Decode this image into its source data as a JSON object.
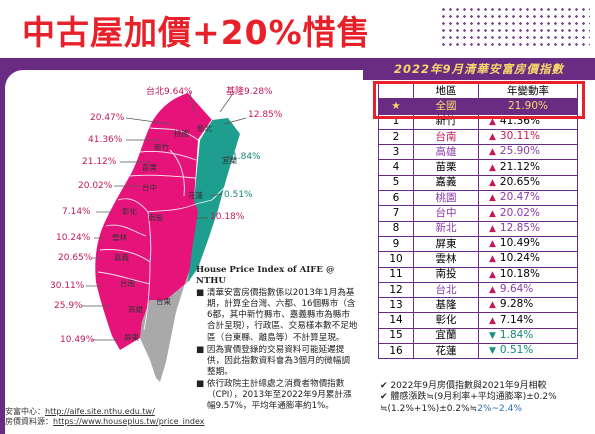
{
  "headline": "中古屋加價+20%惜售",
  "banner": "2022年9月清華安富房價指數",
  "map": {
    "labels": [
      {
        "k": "taipei",
        "text": "台北9.64%"
      },
      {
        "k": "keelung",
        "text": "基隆9.28%"
      },
      {
        "k": "p2047",
        "text": "20.47%"
      },
      {
        "k": "p1285",
        "text": "12.85%"
      },
      {
        "k": "p4136",
        "text": "41.36%"
      },
      {
        "k": "p2112",
        "text": "21.12%"
      },
      {
        "k": "p184",
        "text": "1.84%"
      },
      {
        "k": "p2002",
        "text": "20.02%"
      },
      {
        "k": "p051",
        "text": "0.51%"
      },
      {
        "k": "p714",
        "text": "7.14%"
      },
      {
        "k": "p1018",
        "text": "10.18%"
      },
      {
        "k": "p1024",
        "text": "10.24%"
      },
      {
        "k": "p2065",
        "text": "20.65%"
      },
      {
        "k": "p3011",
        "text": "30.11%"
      },
      {
        "k": "p259",
        "text": "25.9%"
      },
      {
        "k": "p1049",
        "text": "10.49%"
      }
    ],
    "regions": [
      "新北",
      "桃園",
      "新竹",
      "苗栗",
      "宜蘭",
      "台中",
      "花蓮",
      "彰化",
      "南投",
      "雲林",
      "嘉義",
      "台南",
      "高雄",
      "屏東",
      "台東"
    ]
  },
  "info": {
    "title": "House Price Index of AIFE @ NTHU",
    "bullets": [
      "清華安富房價指數係以2013年1月為基期，計算全台灣、六都、16個縣市（含6都，其中新竹縣市、嘉義縣市為縣市合計呈現），行政區、交易樣本數不足地區（台東縣、離島等）不計算呈現。",
      "因為實價登錄的交易資料可能延遲提供，因此指數資料會為3個月的微幅調整期。",
      "依行政院主計總處之消費者物價指數（CPI），2013年至2022年9月累計漲幅9.57%，平均年通膨率約1%。"
    ]
  },
  "credit": {
    "line1_label": "安富中心：",
    "line1_url": "http://aife.site.nthu.edu.tw/",
    "line2_label": "房價資料源：",
    "line2_url": "https://www.houseplus.tw/price_index"
  },
  "table": {
    "headers": [
      "地區",
      "年變動率"
    ],
    "highlight": {
      "num": "★",
      "region": "全國",
      "pct": "21.90%"
    },
    "rows": [
      {
        "num": "1",
        "region": "新竹",
        "pct": "41.36%",
        "dir": "up",
        "color": "dark"
      },
      {
        "num": "2",
        "region": "台南",
        "pct": "30.11%",
        "dir": "up",
        "color": "red"
      },
      {
        "num": "3",
        "region": "高雄",
        "pct": "25.90%",
        "dir": "up",
        "color": "purp"
      },
      {
        "num": "4",
        "region": "苗栗",
        "pct": "21.12%",
        "dir": "up",
        "color": "dark"
      },
      {
        "num": "5",
        "region": "嘉義",
        "pct": "20.65%",
        "dir": "up",
        "color": "dark"
      },
      {
        "num": "6",
        "region": "桃園",
        "pct": "20.47%",
        "dir": "up",
        "color": "purp"
      },
      {
        "num": "7",
        "region": "台中",
        "pct": "20.02%",
        "dir": "up",
        "color": "purp"
      },
      {
        "num": "8",
        "region": "新北",
        "pct": "12.85%",
        "dir": "up",
        "color": "purp"
      },
      {
        "num": "9",
        "region": "屏東",
        "pct": "10.49%",
        "dir": "up",
        "color": "dark"
      },
      {
        "num": "10",
        "region": "雲林",
        "pct": "10.24%",
        "dir": "up",
        "color": "dark"
      },
      {
        "num": "11",
        "region": "南投",
        "pct": "10.18%",
        "dir": "up",
        "color": "dark"
      },
      {
        "num": "12",
        "region": "台北",
        "pct": "9.64%",
        "dir": "up",
        "color": "purp"
      },
      {
        "num": "13",
        "region": "基隆",
        "pct": "9.28%",
        "dir": "up",
        "color": "dark"
      },
      {
        "num": "14",
        "region": "彰化",
        "pct": "7.14%",
        "dir": "up",
        "color": "dark"
      },
      {
        "num": "15",
        "region": "宜蘭",
        "pct": "1.84%",
        "dir": "down",
        "color": "dark"
      },
      {
        "num": "16",
        "region": "花蓮",
        "pct": "0.51%",
        "dir": "down",
        "color": "dark"
      }
    ]
  },
  "notes": {
    "line1": "✔ 2022年9月房價指數與2021年9月相較",
    "line2": "✔ 體感漲跌≒(9月利率+平均通膨率)±0.2%",
    "line3_a": "≒(1.2%+1%)±0.2%≒",
    "line3_b": "2%~2.4%"
  },
  "colors": {
    "accent": "#e8202a",
    "purple": "#6a2c83",
    "magenta": "#e6147a",
    "teal": "#1e9e8e",
    "gray": "#a9a9a9",
    "gold": "#f6d86b"
  }
}
